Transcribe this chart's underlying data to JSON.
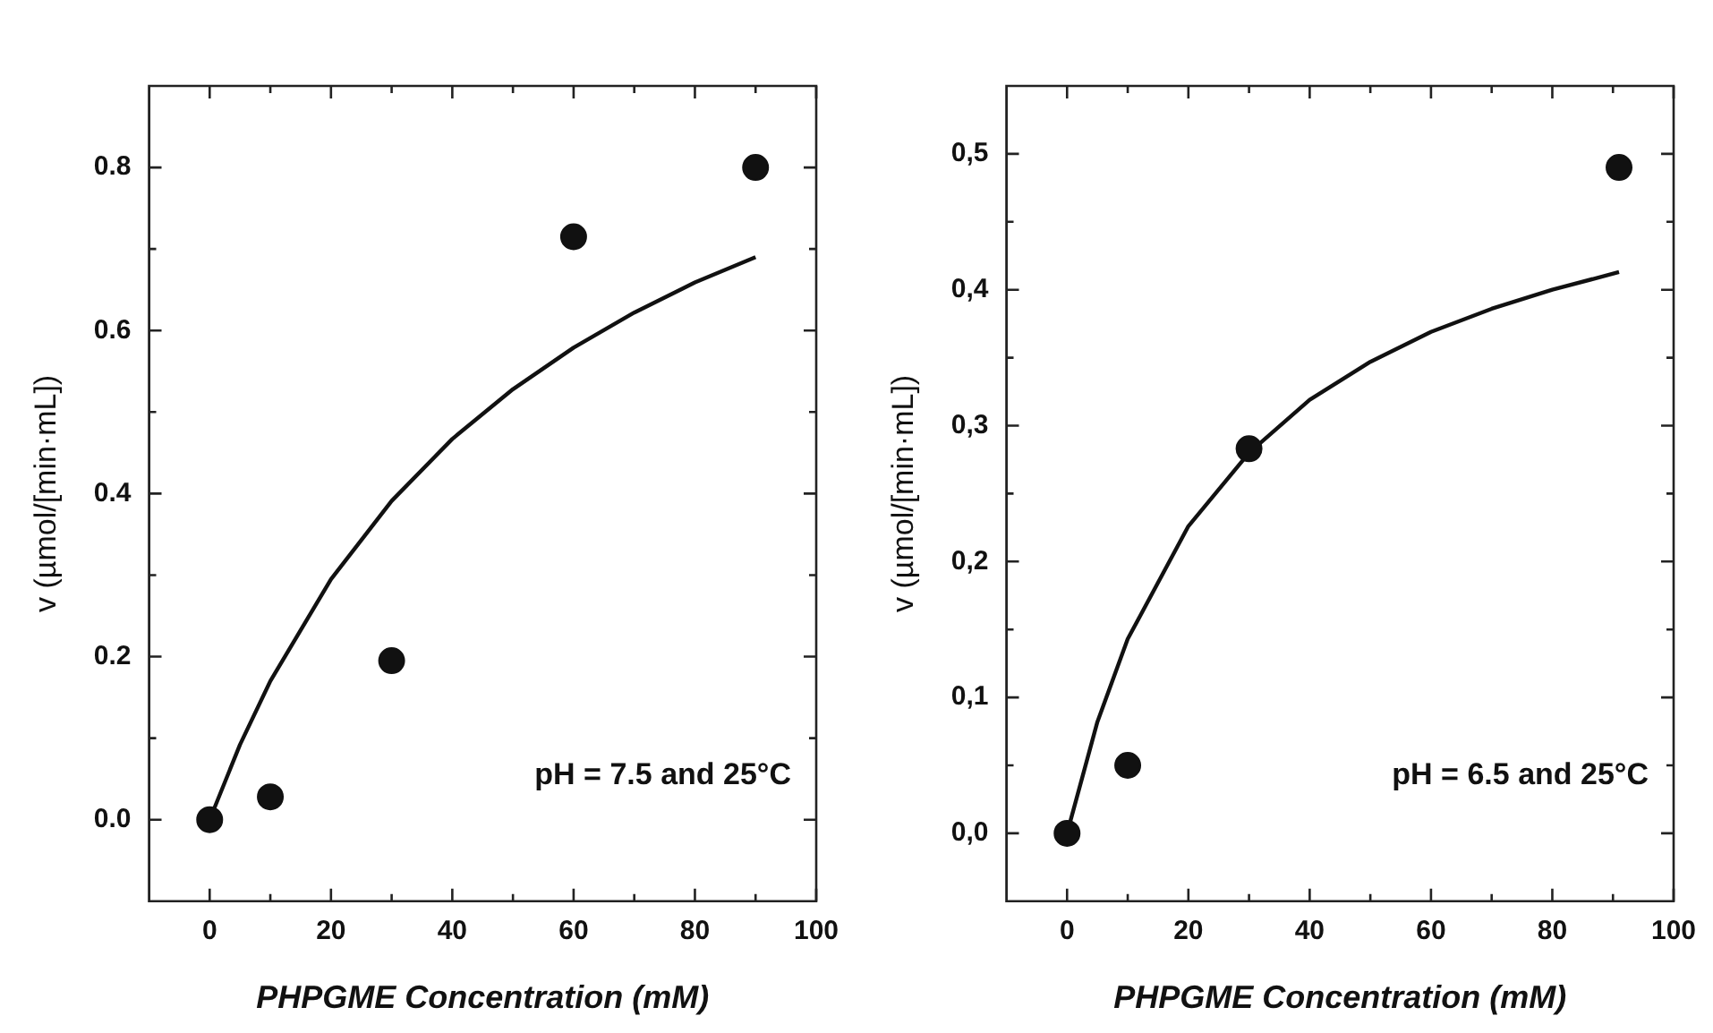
{
  "chart_data": [
    {
      "type": "scatter",
      "xlabel": "PHPGME Concentration (mM)",
      "ylabel": "v (µmol/[min·mL])",
      "annotations": [
        "pH = 7.5 and 25°C"
      ],
      "marker": "circle",
      "grid": false,
      "legend": false,
      "xlim": [
        -10,
        100
      ],
      "xticks": [
        0,
        {
          "value": 10,
          "label": null
        },
        20,
        {
          "value": 30,
          "label": null
        },
        40,
        {
          "value": 50,
          "label": null
        },
        60,
        {
          "value": 70,
          "label": null
        },
        80,
        {
          "value": 90,
          "label": null
        },
        100
      ],
      "ylim": [
        -0.1,
        0.9
      ],
      "yticks": [
        {
          "value": 0,
          "label": "0.0"
        },
        {
          "value": 0.1,
          "label": null
        },
        0.2,
        {
          "value": 0.3,
          "label": null
        },
        0.4,
        {
          "value": 0.5,
          "label": null
        },
        0.6,
        {
          "value": 0.7,
          "label": null
        },
        0.8
      ],
      "series": [
        {
          "type": "scatter",
          "color": "#111111",
          "x": [
            0,
            10,
            30,
            60,
            90
          ],
          "values": [
            0,
            0.028,
            0.195,
            0.715,
            0.8
          ]
        },
        {
          "type": "line",
          "color": "#111111",
          "marker": "none",
          "x": [
            0,
            5,
            10,
            20,
            30,
            40,
            50,
            60,
            70,
            80,
            90
          ],
          "values": [
            0,
            0.092,
            0.17,
            0.295,
            0.391,
            0.467,
            0.528,
            0.579,
            0.622,
            0.659,
            0.69
          ]
        }
      ]
    },
    {
      "type": "scatter",
      "xlabel": "PHPGME Concentration (mM)",
      "ylabel": "v (µmol/[min·mL])",
      "annotations": [
        "pH = 6.5 and 25°C"
      ],
      "marker": "circle",
      "grid": false,
      "legend": false,
      "xlim": [
        -10,
        100
      ],
      "xticks": [
        0,
        {
          "value": 10,
          "label": null
        },
        20,
        {
          "value": 30,
          "label": null
        },
        40,
        {
          "value": 50,
          "label": null
        },
        60,
        {
          "value": 70,
          "label": null
        },
        80,
        {
          "value": 90,
          "label": null
        },
        100
      ],
      "ylim": [
        -0.05,
        0.55
      ],
      "yticks": [
        {
          "value": 0,
          "label": "0,0"
        },
        {
          "value": 0.05,
          "label": null
        },
        {
          "value": 0.1,
          "label": "0,1"
        },
        {
          "value": 0.15,
          "label": null
        },
        {
          "value": 0.2,
          "label": "0,2"
        },
        {
          "value": 0.25,
          "label": null
        },
        {
          "value": 0.3,
          "label": "0,3"
        },
        {
          "value": 0.35,
          "label": null
        },
        {
          "value": 0.4,
          "label": "0,4"
        },
        {
          "value": 0.45,
          "label": null
        },
        {
          "value": 0.5,
          "label": "0,5"
        }
      ],
      "series": [
        {
          "type": "scatter",
          "color": "#111111",
          "x": [
            0,
            10,
            30,
            91
          ],
          "values": [
            0,
            0.05,
            0.283,
            0.49
          ]
        },
        {
          "type": "line",
          "color": "#111111",
          "marker": "none",
          "x": [
            0,
            5,
            10,
            20,
            30,
            40,
            50,
            60,
            70,
            80,
            91
          ],
          "values": [
            0,
            0.082,
            0.143,
            0.226,
            0.28,
            0.319,
            0.347,
            0.369,
            0.386,
            0.4,
            0.413
          ]
        }
      ]
    }
  ]
}
